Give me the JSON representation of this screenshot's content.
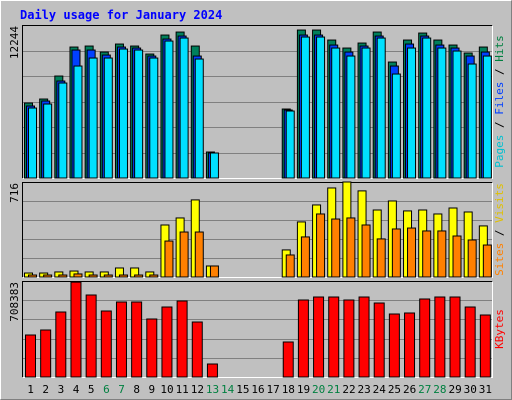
{
  "chart_data": {
    "type": "bar",
    "title": "Daily usage for January 2024",
    "categories": [
      "1",
      "2",
      "3",
      "4",
      "5",
      "6",
      "7",
      "8",
      "9",
      "10",
      "11",
      "12",
      "13",
      "14",
      "15",
      "16",
      "17",
      "18",
      "19",
      "20",
      "21",
      "22",
      "23",
      "24",
      "25",
      "26",
      "27",
      "28",
      "29",
      "30",
      "31"
    ],
    "weekend_indices": [
      5,
      6,
      12,
      13,
      19,
      20,
      26,
      27
    ],
    "weekend_color": "#008040",
    "separator": "/",
    "panels": [
      {
        "ylim": [
          0,
          12244
        ],
        "yticks": [
          12244
        ],
        "grid_lines": 5,
        "series": [
          {
            "name": "Hits",
            "color": "#00805c",
            "label_color": "#008040",
            "values": [
              6000,
              6320,
              8160,
              10480,
              10560,
              10080,
              10720,
              10560,
              9920,
              11440,
              11680,
              10560,
              2080,
              0,
              0,
              0,
              0,
              5520,
              11840,
              11840,
              11040,
              10400,
              10800,
              11680,
              9280,
              11040,
              11600,
              11040,
              10640,
              10000,
              10480
            ]
          },
          {
            "name": "Files",
            "color": "#0040ff",
            "label_color": "#0040ff",
            "values": [
              5760,
              6160,
              7760,
              10240,
              10240,
              9840,
              10480,
              10400,
              9760,
              11120,
              11360,
              9760,
              2000,
              0,
              0,
              0,
              0,
              5440,
              11440,
              11440,
              10640,
              10080,
              10560,
              11360,
              8960,
              10720,
              11360,
              10640,
              10400,
              9760,
              10080
            ]
          },
          {
            "name": "Pages",
            "color": "#00e0ff",
            "label_color": "#00c0d0",
            "values": [
              5600,
              5920,
              7600,
              8960,
              9600,
              9600,
              10320,
              10240,
              9600,
              10960,
              11200,
              9520,
              2000,
              0,
              0,
              0,
              0,
              5360,
              11280,
              11280,
              10400,
              9760,
              10400,
              11200,
              8320,
              10400,
              11200,
              10400,
              10160,
              9120,
              9760
            ]
          }
        ]
      },
      {
        "ylim": [
          0,
          716
        ],
        "yticks": [
          716
        ],
        "grid_lines": 4,
        "series": [
          {
            "name": "Visits",
            "color": "#ffff00",
            "label_color": "#e0c000",
            "values": [
              30,
              30,
              38,
              45,
              38,
              38,
              68,
              68,
              38,
              392,
              445,
              581,
              83,
              0,
              0,
              0,
              0,
              204,
              415,
              543,
              671,
              716,
              649,
              505,
              573,
              498,
              505,
              475,
              520,
              490,
              385
            ]
          },
          {
            "name": "Sites",
            "color": "#ff8000",
            "label_color": "#ff8000",
            "values": [
              15,
              15,
              15,
              23,
              15,
              15,
              15,
              15,
              15,
              271,
              339,
              339,
              83,
              0,
              0,
              0,
              0,
              166,
              302,
              475,
              437,
              445,
              392,
              287,
              362,
              369,
              347,
              347,
              309,
              279,
              241
            ]
          }
        ]
      },
      {
        "ylim": [
          0,
          708383
        ],
        "yticks": [
          708383
        ],
        "grid_lines": 4,
        "series": [
          {
            "name": "KBytes",
            "color": "#ff0000",
            "label_color": "#ff0000",
            "values": [
              309900,
              346800,
              479600,
              700000,
              605100,
              487000,
              553400,
              553400,
              428000,
              516500,
              560800,
              405800,
              95900,
              0,
              0,
              0,
              0,
              258300,
              568200,
              590300,
              590300,
              568200,
              590300,
              546000,
              464900,
              472300,
              575600,
              590300,
              590300,
              516500,
              457500
            ]
          }
        ]
      }
    ]
  }
}
